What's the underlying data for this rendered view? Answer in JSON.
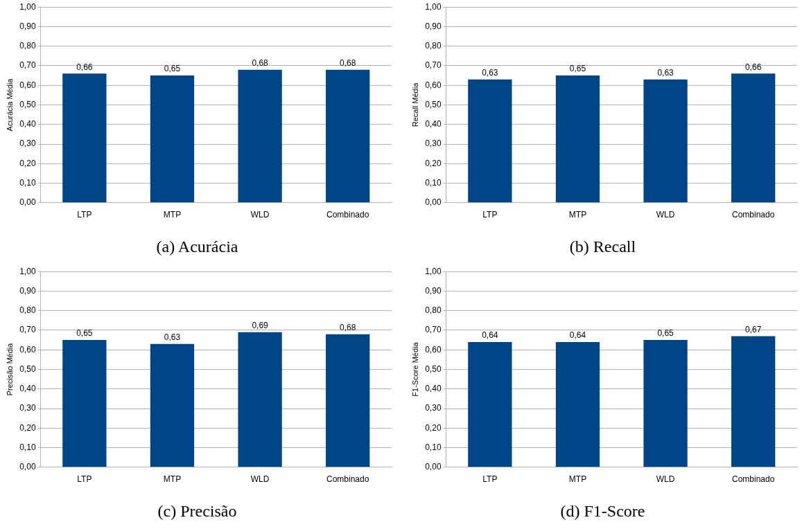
{
  "chart_data": [
    {
      "type": "bar",
      "title": "(a) Acurácia",
      "ylabel": "Acurácia Média",
      "categories": [
        "LTP",
        "MTP",
        "WLD",
        "Combinado"
      ],
      "values": [
        0.66,
        0.65,
        0.68,
        0.68
      ],
      "value_labels": [
        "0,66",
        "0,65",
        "0,68",
        "0,68"
      ],
      "color": "#004586",
      "ylim": [
        0,
        1
      ],
      "yticks": [
        {
          "value": 0,
          "label": "0,00"
        },
        {
          "value": 0.1,
          "label": "0,10"
        },
        {
          "value": 0.2,
          "label": "0,20"
        },
        {
          "value": 0.3,
          "label": "0,30"
        },
        {
          "value": 0.4,
          "label": "0,40"
        },
        {
          "value": 0.5,
          "label": "0,50"
        },
        {
          "value": 0.6,
          "label": "0,60"
        },
        {
          "value": 0.7,
          "label": "0,70"
        },
        {
          "value": 0.8,
          "label": "0,80"
        },
        {
          "value": 0.9,
          "label": "0,90"
        },
        {
          "value": 1,
          "label": "1,00"
        }
      ],
      "grid": "y"
    },
    {
      "type": "bar",
      "title": "(b) Recall",
      "ylabel": "Recall Média",
      "categories": [
        "LTP",
        "MTP",
        "WLD",
        "Combinado"
      ],
      "values": [
        0.63,
        0.65,
        0.63,
        0.66
      ],
      "value_labels": [
        "0,63",
        "0,65",
        "0,63",
        "0,66"
      ],
      "color": "#004586",
      "ylim": [
        0,
        1
      ],
      "yticks": [
        {
          "value": 0,
          "label": "0,00"
        },
        {
          "value": 0.1,
          "label": "0,10"
        },
        {
          "value": 0.2,
          "label": "0,20"
        },
        {
          "value": 0.3,
          "label": "0,30"
        },
        {
          "value": 0.4,
          "label": "0,40"
        },
        {
          "value": 0.5,
          "label": "0,50"
        },
        {
          "value": 0.6,
          "label": "0,60"
        },
        {
          "value": 0.7,
          "label": "0,70"
        },
        {
          "value": 0.8,
          "label": "0,80"
        },
        {
          "value": 0.9,
          "label": "0,90"
        },
        {
          "value": 1,
          "label": "1,00"
        }
      ],
      "grid": "y"
    },
    {
      "type": "bar",
      "title": "(c) Precisão",
      "ylabel": "Precisão Média",
      "categories": [
        "LTP",
        "MTP",
        "WLD",
        "Combinado"
      ],
      "values": [
        0.65,
        0.63,
        0.69,
        0.68
      ],
      "value_labels": [
        "0,65",
        "0,63",
        "0,69",
        "0,68"
      ],
      "color": "#004586",
      "ylim": [
        0,
        1
      ],
      "yticks": [
        {
          "value": 0,
          "label": "0,00"
        },
        {
          "value": 0.1,
          "label": "0,10"
        },
        {
          "value": 0.2,
          "label": "0,20"
        },
        {
          "value": 0.3,
          "label": "0,30"
        },
        {
          "value": 0.4,
          "label": "0,40"
        },
        {
          "value": 0.5,
          "label": "0,50"
        },
        {
          "value": 0.6,
          "label": "0,60"
        },
        {
          "value": 0.7,
          "label": "0,70"
        },
        {
          "value": 0.8,
          "label": "0,80"
        },
        {
          "value": 0.9,
          "label": "0,90"
        },
        {
          "value": 1,
          "label": "1,00"
        }
      ],
      "grid": "y"
    },
    {
      "type": "bar",
      "title": "(d) F1-Score",
      "ylabel": "F1-Score Média",
      "categories": [
        "LTP",
        "MTP",
        "WLD",
        "Combinado"
      ],
      "values": [
        0.64,
        0.64,
        0.65,
        0.67
      ],
      "value_labels": [
        "0,64",
        "0,64",
        "0,65",
        "0,67"
      ],
      "color": "#004586",
      "ylim": [
        0,
        1
      ],
      "yticks": [
        {
          "value": 0,
          "label": "0,00"
        },
        {
          "value": 0.1,
          "label": "0,10"
        },
        {
          "value": 0.2,
          "label": "0,20"
        },
        {
          "value": 0.3,
          "label": "0,30"
        },
        {
          "value": 0.4,
          "label": "0,40"
        },
        {
          "value": 0.5,
          "label": "0,50"
        },
        {
          "value": 0.6,
          "label": "0,60"
        },
        {
          "value": 0.7,
          "label": "0,70"
        },
        {
          "value": 0.8,
          "label": "0,80"
        },
        {
          "value": 0.9,
          "label": "0,90"
        },
        {
          "value": 1,
          "label": "1,00"
        }
      ],
      "grid": "y"
    }
  ]
}
